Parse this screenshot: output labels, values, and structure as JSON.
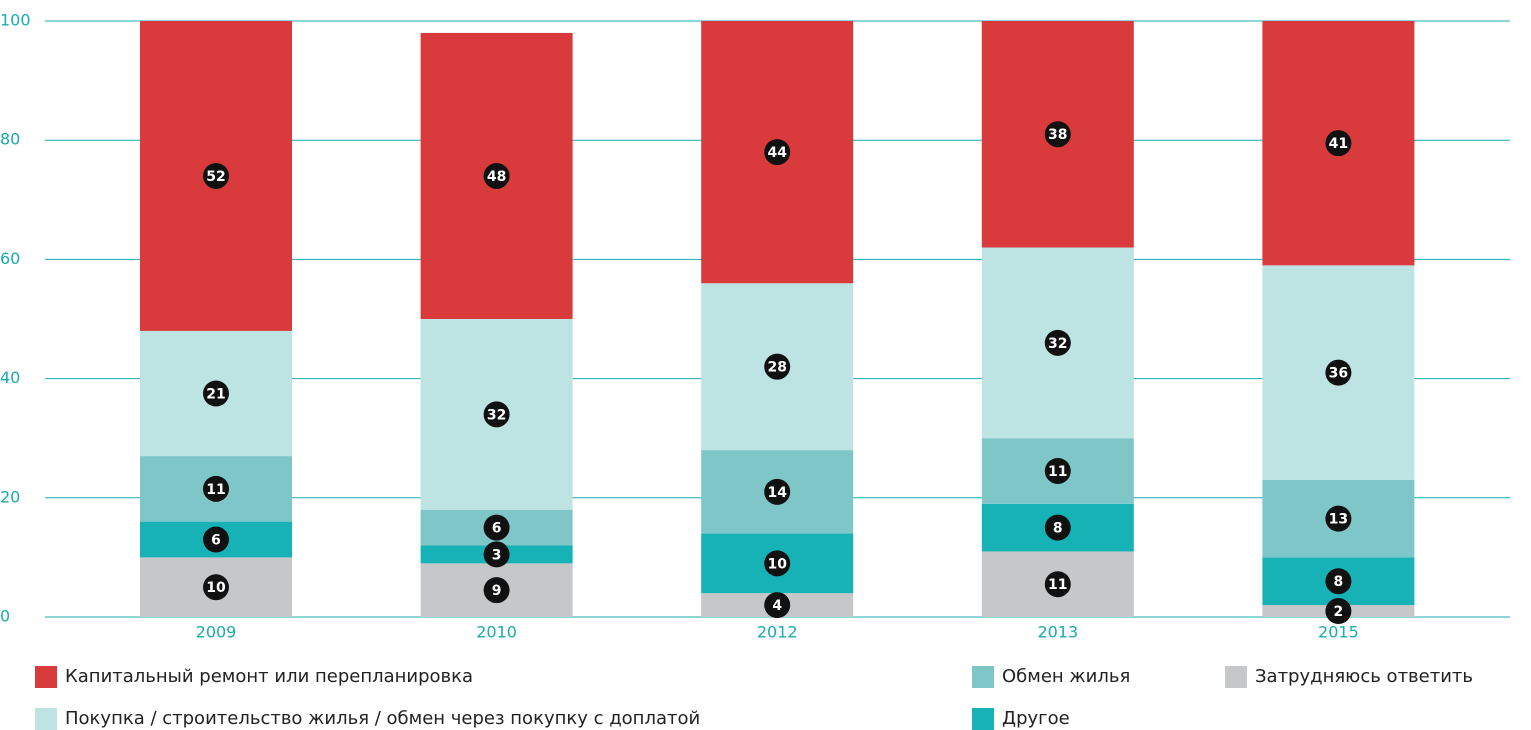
{
  "chart_data": {
    "type": "stacked_bar",
    "categories": [
      "2009",
      "2010",
      "2012",
      "2013",
      "2015"
    ],
    "series": [
      {
        "name": "Затрудняюсь ответить",
        "color": "#c6c7c9",
        "values": [
          10,
          9,
          4,
          11,
          2
        ]
      },
      {
        "name": "Другое",
        "color": "#17b2b5",
        "values": [
          6,
          3,
          10,
          8,
          8
        ]
      },
      {
        "name": "Обмен жилья",
        "color": "#7fc6c8",
        "values": [
          11,
          6,
          14,
          11,
          13
        ]
      },
      {
        "name": "Покупка / строительство жилья / обмен через покупку с доплатой",
        "color": "#bde3e3",
        "values": [
          21,
          32,
          28,
          32,
          36
        ]
      },
      {
        "name": "Капитальный ремонт или перепланировка",
        "color": "#d93a3c",
        "values": [
          52,
          48,
          44,
          38,
          41
        ]
      }
    ],
    "ylim": [
      0,
      100
    ],
    "yticks": [
      0,
      20,
      40,
      60,
      80,
      100
    ],
    "grid": true
  }
}
